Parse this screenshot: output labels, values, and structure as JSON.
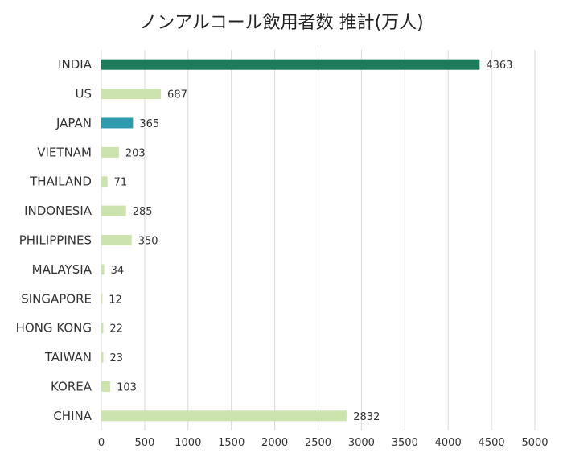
{
  "chart_data": {
    "type": "bar",
    "orientation": "horizontal",
    "title": "ノンアルコール飲用者数 推計(万人)",
    "xlabel": "",
    "ylabel": "",
    "categories": [
      "INDIA",
      "US",
      "JAPAN",
      "VIETNAM",
      "THAILAND",
      "INDONESIA",
      "PHILIPPINES",
      "MALAYSIA",
      "SINGAPORE",
      "HONG KONG",
      "TAIWAN",
      "KOREA",
      "CHINA"
    ],
    "values": [
      4363,
      687,
      365,
      203,
      71,
      285,
      350,
      34,
      12,
      22,
      23,
      103,
      2832
    ],
    "bar_colors": [
      "#1e7b5c",
      "#cde3ad",
      "#2e9ab0",
      "#cde3ad",
      "#cde3ad",
      "#cde3ad",
      "#cde3ad",
      "#cde3ad",
      "#cde3ad",
      "#cde3ad",
      "#cde3ad",
      "#cde3ad",
      "#cde3ad"
    ],
    "xlim": [
      0,
      5000
    ],
    "xticks": [
      0,
      500,
      1000,
      1500,
      2000,
      2500,
      3000,
      3500,
      4000,
      4500,
      5000
    ],
    "grid": "vertical",
    "legend": "none"
  }
}
